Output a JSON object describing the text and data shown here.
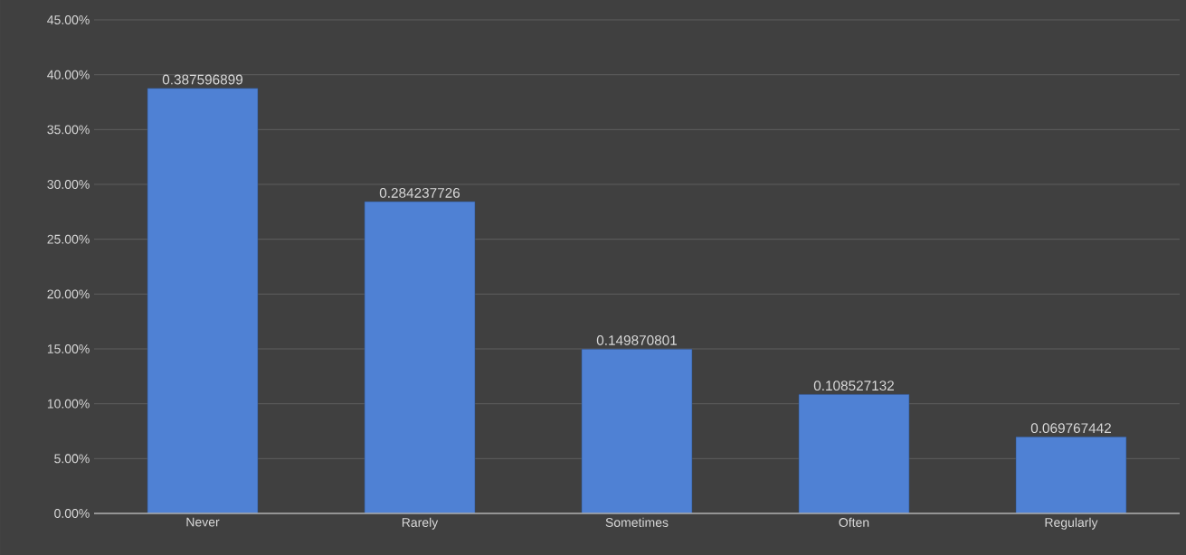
{
  "chart_data": {
    "type": "bar",
    "categories": [
      "Never",
      "Rarely",
      "Sometimes",
      "Often",
      "Regularly"
    ],
    "values": [
      0.387596899,
      0.284237726,
      0.149870801,
      0.108527132,
      0.069767442
    ],
    "color": "#4f81d4",
    "ylim": [
      0,
      0.45
    ],
    "yticks": [
      {
        "value": 0,
        "label": "0.00%"
      },
      {
        "value": 0.05,
        "label": "5.00%"
      },
      {
        "value": 0.1,
        "label": "10.00%"
      },
      {
        "value": 0.15,
        "label": "15.00%"
      },
      {
        "value": 0.2,
        "label": "20.00%"
      },
      {
        "value": 0.25,
        "label": "25.00%"
      },
      {
        "value": 0.3,
        "label": "30.00%"
      },
      {
        "value": 0.35,
        "label": "35.00%"
      },
      {
        "value": 0.4,
        "label": "40.00%"
      },
      {
        "value": 0.45,
        "label": "45.00%"
      }
    ],
    "grid": "y",
    "data_labels": true
  }
}
